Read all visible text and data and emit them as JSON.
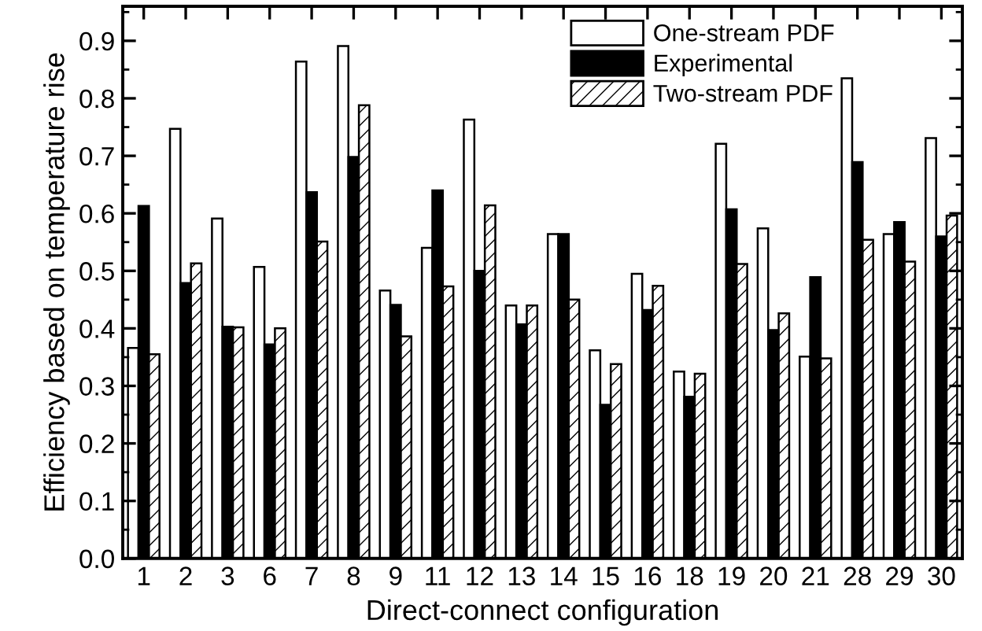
{
  "chart_data": {
    "type": "bar",
    "xlabel": "Direct-connect configuration",
    "ylabel": "Efficiency based on temperature rise",
    "categories": [
      "1",
      "2",
      "3",
      "6",
      "7",
      "8",
      "9",
      "11",
      "12",
      "13",
      "14",
      "15",
      "16",
      "18",
      "19",
      "20",
      "21",
      "28",
      "29",
      "30"
    ],
    "series": [
      {
        "name": "One-stream PDF",
        "color": "#ffffff",
        "values": [
          0.366,
          0.747,
          0.591,
          0.507,
          0.864,
          0.891,
          0.466,
          0.54,
          0.763,
          0.44,
          0.564,
          0.362,
          0.495,
          0.325,
          0.721,
          0.574,
          0.351,
          0.835,
          0.564,
          0.731
        ]
      },
      {
        "name": "Experimental",
        "color": "#000000",
        "values": [
          0.613,
          0.479,
          0.403,
          0.372,
          0.637,
          0.698,
          0.441,
          0.64,
          0.5,
          0.407,
          0.564,
          0.267,
          0.432,
          0.281,
          0.607,
          0.397,
          0.489,
          0.689,
          0.585,
          0.56
        ]
      },
      {
        "name": "Two-stream PDF",
        "color": "#000000",
        "values": [
          0.355,
          0.513,
          0.402,
          0.4,
          0.551,
          0.788,
          0.386,
          0.473,
          0.614,
          0.44,
          0.45,
          0.338,
          0.474,
          0.321,
          0.512,
          0.426,
          0.348,
          0.554,
          0.516,
          0.596
        ]
      }
    ],
    "ylim": [
      0,
      0.96
    ],
    "yticks": [
      {
        "value": 0,
        "label": "0.0"
      },
      {
        "value": 0.05,
        "label": null
      },
      {
        "value": 0.1,
        "label": "0.1"
      },
      {
        "value": 0.15,
        "label": null
      },
      {
        "value": 0.2,
        "label": "0.2"
      },
      {
        "value": 0.25,
        "label": null
      },
      {
        "value": 0.3,
        "label": "0.3"
      },
      {
        "value": 0.35,
        "label": null
      },
      {
        "value": 0.4,
        "label": "0.4"
      },
      {
        "value": 0.45,
        "label": null
      },
      {
        "value": 0.5,
        "label": "0.5"
      },
      {
        "value": 0.55,
        "label": null
      },
      {
        "value": 0.6,
        "label": "0.6"
      },
      {
        "value": 0.65,
        "label": null
      },
      {
        "value": 0.7,
        "label": "0.7"
      },
      {
        "value": 0.75,
        "label": null
      },
      {
        "value": 0.8,
        "label": "0.8"
      },
      {
        "value": 0.85,
        "label": null
      },
      {
        "value": 0.9,
        "label": "0.9"
      },
      {
        "value": 0.95,
        "label": null
      }
    ],
    "legend": "top right",
    "grid": false
  }
}
